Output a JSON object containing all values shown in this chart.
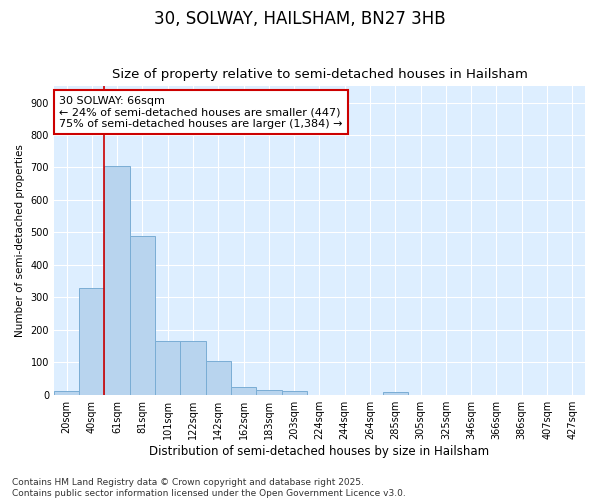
{
  "title1": "30, SOLWAY, HAILSHAM, BN27 3HB",
  "title2": "Size of property relative to semi-detached houses in Hailsham",
  "xlabel": "Distribution of semi-detached houses by size in Hailsham",
  "ylabel": "Number of semi-detached properties",
  "bins": [
    "20sqm",
    "40sqm",
    "61sqm",
    "81sqm",
    "101sqm",
    "122sqm",
    "142sqm",
    "162sqm",
    "183sqm",
    "203sqm",
    "224sqm",
    "244sqm",
    "264sqm",
    "285sqm",
    "305sqm",
    "325sqm",
    "346sqm",
    "366sqm",
    "386sqm",
    "407sqm",
    "427sqm"
  ],
  "values": [
    10,
    330,
    705,
    490,
    165,
    165,
    105,
    25,
    14,
    10,
    0,
    0,
    0,
    7,
    0,
    0,
    0,
    0,
    0,
    0,
    0
  ],
  "bar_color": "#b8d4ee",
  "bar_edge_color": "#7aadd4",
  "vline_color": "#cc0000",
  "annotation_text": "30 SOLWAY: 66sqm\n← 24% of semi-detached houses are smaller (447)\n75% of semi-detached houses are larger (1,384) →",
  "annotation_box_color": "#ffffff",
  "annotation_box_edge_color": "#cc0000",
  "ylim": [
    0,
    950
  ],
  "yticks": [
    0,
    100,
    200,
    300,
    400,
    500,
    600,
    700,
    800,
    900
  ],
  "footer1": "Contains HM Land Registry data © Crown copyright and database right 2025.",
  "footer2": "Contains public sector information licensed under the Open Government Licence v3.0.",
  "fig_bg_color": "#ffffff",
  "plot_bg_color": "#ddeeff",
  "grid_color": "#ffffff",
  "title1_fontsize": 12,
  "title2_fontsize": 9.5,
  "xlabel_fontsize": 8.5,
  "ylabel_fontsize": 7.5,
  "tick_fontsize": 7,
  "annotation_fontsize": 8,
  "footer_fontsize": 6.5
}
